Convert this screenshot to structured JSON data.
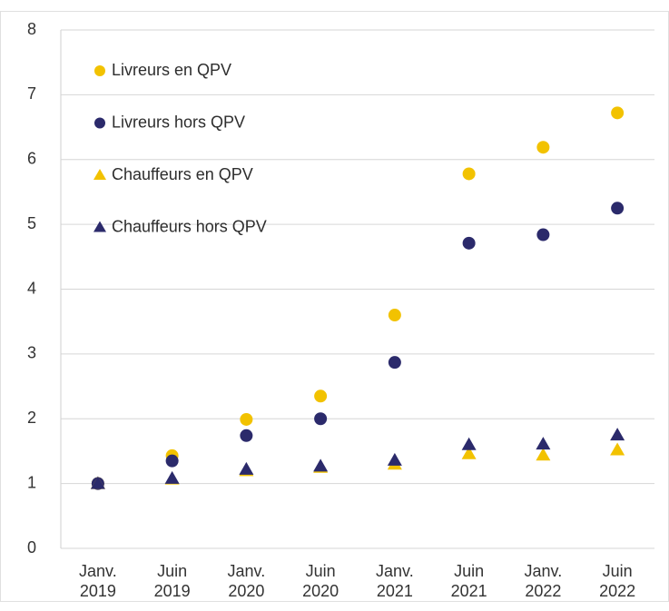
{
  "chart_data": {
    "type": "scatter",
    "categories": [
      [
        "Janv.",
        "2019"
      ],
      [
        "Juin",
        "2019"
      ],
      [
        "Janv.",
        "2020"
      ],
      [
        "Juin",
        "2020"
      ],
      [
        "Janv.",
        "2021"
      ],
      [
        "Juin",
        "2021"
      ],
      [
        "Janv.",
        "2022"
      ],
      [
        "Juin",
        "2022"
      ]
    ],
    "series": [
      {
        "name": "Livreurs en QPV",
        "color": "#f2c200",
        "marker": "circle",
        "values": [
          1,
          1.43,
          1.99,
          2.35,
          3.6,
          5.78,
          6.19,
          6.72
        ]
      },
      {
        "name": "Livreurs hors QPV",
        "color": "#2b2a6b",
        "marker": "circle",
        "values": [
          1,
          1.35,
          1.74,
          2.0,
          2.87,
          4.71,
          4.84,
          5.25
        ]
      },
      {
        "name": "Chauffeurs en QPV",
        "color": "#f2c200",
        "marker": "triangle",
        "values": [
          1,
          1.07,
          1.2,
          1.25,
          1.3,
          1.46,
          1.44,
          1.52
        ]
      },
      {
        "name": "Chauffeurs hors QPV",
        "color": "#2b2a6b",
        "marker": "triangle",
        "values": [
          1,
          1.08,
          1.22,
          1.27,
          1.36,
          1.6,
          1.61,
          1.75
        ]
      }
    ],
    "ylim": [
      0,
      8
    ],
    "yticks": [
      0,
      1,
      2,
      3,
      4,
      5,
      6,
      7,
      8
    ],
    "grid": true,
    "legend": "upper left"
  }
}
